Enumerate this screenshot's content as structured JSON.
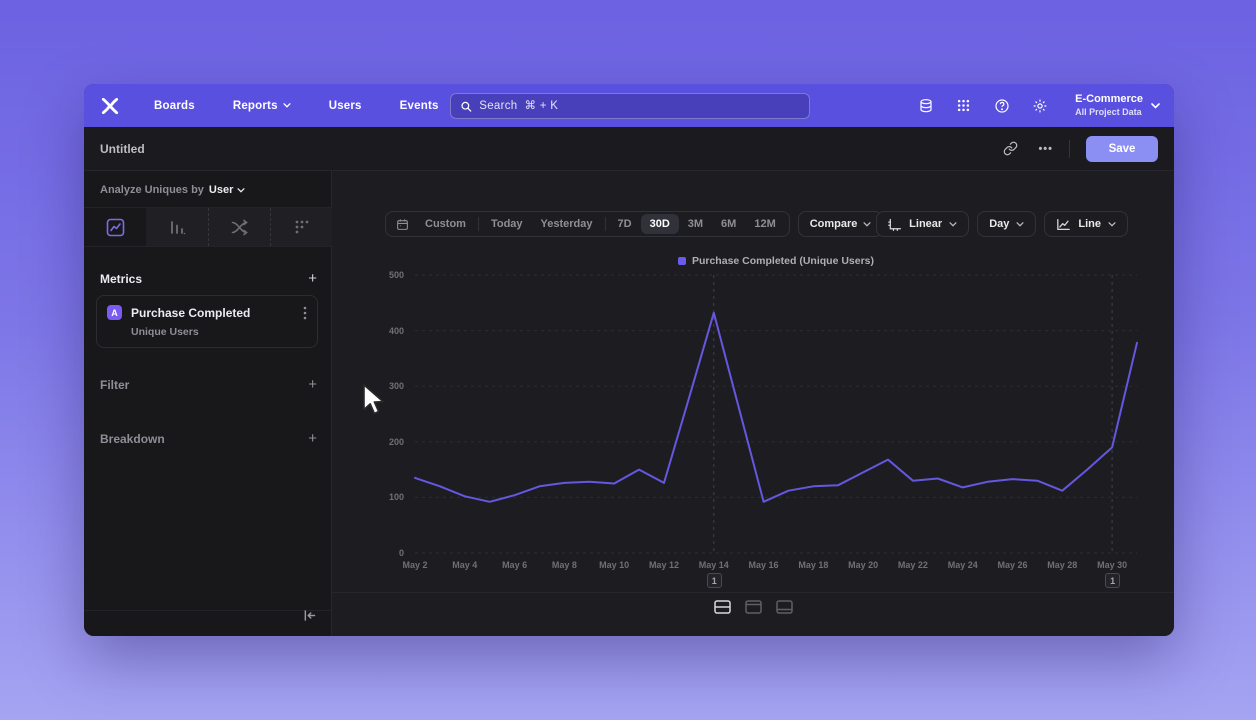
{
  "colors": {
    "navbar": "#5a50df",
    "accent": "#7b6ce6",
    "save_button": "#8b8ef2",
    "series_line": "#6457e0",
    "legend_swatch": "#6a5ce8",
    "window_bg": "#1b1b1f"
  },
  "navbar": {
    "items": [
      "Boards",
      "Reports",
      "Users",
      "Events"
    ],
    "caret_item": "Reports",
    "search_placeholder": "Search  ⌘ + K",
    "project_name": "E-Commerce",
    "project_scope": "All Project Data"
  },
  "titlebar": {
    "title": "Untitled",
    "more_label": "•••",
    "save_label": "Save"
  },
  "sidebar": {
    "analyze_label": "Analyze Uniques by",
    "analyze_value": "User",
    "tabs": [
      "insights",
      "funnels",
      "flows",
      "retention"
    ],
    "selected_tab": "insights",
    "metrics_header": "Metrics",
    "metrics_add": "+",
    "metric": {
      "badge": "A",
      "name": "Purchase Completed",
      "subtitle": "Unique Users"
    },
    "filter_header": "Filter",
    "filter_add": "+",
    "breakdown_header": "Breakdown",
    "breakdown_add": "+"
  },
  "toolbar": {
    "ranges": [
      "Custom",
      "Today",
      "Yesterday",
      "7D",
      "30D",
      "3M",
      "6M",
      "12M"
    ],
    "selected_range": "30D",
    "compare_label": "Compare",
    "scale_label": "Linear",
    "interval_label": "Day",
    "chart_type_label": "Line"
  },
  "chart_data": {
    "type": "line",
    "title": "",
    "legend_position": "top-center",
    "grid": "dashed-horizontal",
    "ylim": [
      0,
      500
    ],
    "y_ticks": [
      0,
      100,
      200,
      300,
      400,
      500
    ],
    "x": [
      "May 2",
      "May 3",
      "May 4",
      "May 5",
      "May 6",
      "May 7",
      "May 8",
      "May 9",
      "May 10",
      "May 11",
      "May 12",
      "May 13",
      "May 14",
      "May 15",
      "May 16",
      "May 17",
      "May 18",
      "May 19",
      "May 20",
      "May 21",
      "May 22",
      "May 23",
      "May 24",
      "May 25",
      "May 26",
      "May 27",
      "May 28",
      "May 29",
      "May 30",
      "May 31"
    ],
    "x_tick_labels": [
      "May 2",
      "May 4",
      "May 6",
      "May 8",
      "May 10",
      "May 12",
      "May 14",
      "May 16",
      "May 18",
      "May 20",
      "May 22",
      "May 24",
      "May 26",
      "May 28",
      "May 30"
    ],
    "series": [
      {
        "name": "Purchase Completed (Unique Users)",
        "color": "#6457e0",
        "values": [
          135,
          120,
          102,
          92,
          104,
          120,
          126,
          128,
          125,
          150,
          126,
          278,
          432,
          262,
          92,
          112,
          120,
          122,
          145,
          168,
          130,
          134,
          118,
          128,
          133,
          130,
          112,
          150,
          190,
          378
        ]
      }
    ],
    "annotations": [
      {
        "label": "1",
        "x": "May 14"
      },
      {
        "label": "1",
        "x": "May 30"
      }
    ]
  }
}
